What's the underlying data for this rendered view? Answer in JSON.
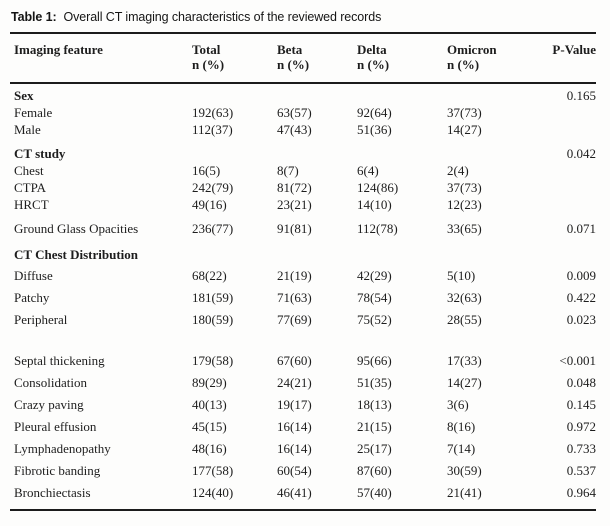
{
  "table": {
    "caption_prefix": "Table 1:",
    "caption_text": "Overall CT imaging characteristics of the reviewed records",
    "columns": [
      {
        "key": "feature",
        "label": "Imaging feature",
        "sub": ""
      },
      {
        "key": "total",
        "label": "Total",
        "sub": "n (%)"
      },
      {
        "key": "beta",
        "label": "Beta",
        "sub": "n (%)"
      },
      {
        "key": "delta",
        "label": "Delta",
        "sub": "n (%)"
      },
      {
        "key": "omicron",
        "label": "Omicron",
        "sub": "n (%)"
      },
      {
        "key": "pval",
        "label": "P-Value",
        "sub": ""
      }
    ],
    "rows": [
      {
        "type": "section",
        "feature": "Sex",
        "total": "",
        "beta": "",
        "delta": "",
        "omicron": "",
        "pval": "0.165"
      },
      {
        "type": "subitem",
        "feature": "Female",
        "total": "192(63)",
        "beta": "63(57)",
        "delta": "92(64)",
        "omicron": "37(73)",
        "pval": ""
      },
      {
        "type": "subitem",
        "feature": "Male",
        "total": "112(37)",
        "beta": "47(43)",
        "delta": "51(36)",
        "omicron": "14(27)",
        "pval": ""
      },
      {
        "type": "section",
        "feature": "CT study",
        "total": "",
        "beta": "",
        "delta": "",
        "omicron": "",
        "pval": "0.042"
      },
      {
        "type": "subitem",
        "feature": "Chest",
        "total": "16(5)",
        "beta": "8(7)",
        "delta": "6(4)",
        "omicron": "2(4)",
        "pval": ""
      },
      {
        "type": "subitem",
        "feature": "CTPA",
        "total": "242(79)",
        "beta": "81(72)",
        "delta": "124(86)",
        "omicron": "37(73)",
        "pval": ""
      },
      {
        "type": "subitem",
        "feature": "HRCT",
        "total": "49(16)",
        "beta": "23(21)",
        "delta": "14(10)",
        "omicron": "12(23)",
        "pval": ""
      },
      {
        "type": "item",
        "gap": "sm",
        "feature": "Ground Glass Opacities",
        "total": "236(77)",
        "beta": "91(81)",
        "delta": "112(78)",
        "omicron": "33(65)",
        "pval": "0.071"
      },
      {
        "type": "section",
        "gap": "md",
        "feature": "CT Chest Distribution",
        "total": "",
        "beta": "",
        "delta": "",
        "omicron": "",
        "pval": ""
      },
      {
        "type": "item",
        "feature": "Diffuse",
        "total": "68(22)",
        "beta": "21(19)",
        "delta": "42(29)",
        "omicron": "5(10)",
        "pval": "0.009"
      },
      {
        "type": "item",
        "feature": "Patchy",
        "total": "181(59)",
        "beta": "71(63)",
        "delta": "78(54)",
        "omicron": "32(63)",
        "pval": "0.422"
      },
      {
        "type": "item",
        "feature": "Peripheral",
        "total": "180(59)",
        "beta": "77(69)",
        "delta": "75(52)",
        "omicron": "28(55)",
        "pval": "0.023"
      },
      {
        "type": "item",
        "gap": "lg",
        "feature": "Septal thickening",
        "total": "179(58)",
        "beta": "67(60)",
        "delta": "95(66)",
        "omicron": "17(33)",
        "pval": "<0.001"
      },
      {
        "type": "item",
        "feature": "Consolidation",
        "total": "89(29)",
        "beta": "24(21)",
        "delta": "51(35)",
        "omicron": "14(27)",
        "pval": "0.048"
      },
      {
        "type": "item",
        "feature": "Crazy paving",
        "total": "40(13)",
        "beta": "19(17)",
        "delta": "18(13)",
        "omicron": "3(6)",
        "pval": "0.145"
      },
      {
        "type": "item",
        "feature": "Pleural effusion",
        "total": "45(15)",
        "beta": "16(14)",
        "delta": "21(15)",
        "omicron": "8(16)",
        "pval": "0.972"
      },
      {
        "type": "item",
        "feature": "Lymphadenopathy",
        "total": "48(16)",
        "beta": "16(14)",
        "delta": "25(17)",
        "omicron": "7(14)",
        "pval": "0.733"
      },
      {
        "type": "item",
        "feature": "Fibrotic banding",
        "total": "177(58)",
        "beta": "60(54)",
        "delta": "87(60)",
        "omicron": "30(59)",
        "pval": "0.537"
      },
      {
        "type": "item",
        "feature": "Bronchiectasis",
        "total": "124(40)",
        "beta": "46(41)",
        "delta": "57(40)",
        "omicron": "21(41)",
        "pval": "0.964"
      }
    ]
  },
  "colors": {
    "text": "#1d1d1d",
    "rule": "#1c1c1c",
    "background": "#fdfdfc"
  }
}
